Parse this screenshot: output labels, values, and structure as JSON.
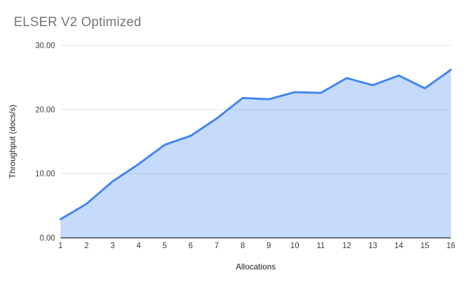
{
  "chart_data": {
    "type": "area",
    "title": "ELSER V2 Optimized",
    "xlabel": "Allocations",
    "ylabel": "Throughput (docs/s)",
    "x": [
      1,
      2,
      3,
      4,
      5,
      6,
      7,
      8,
      9,
      10,
      11,
      12,
      13,
      14,
      15,
      16
    ],
    "x_tick_labels": [
      "1",
      "2",
      "3",
      "4",
      "5",
      "6",
      "7",
      "8",
      "9",
      "10",
      "11",
      "12",
      "13",
      "14",
      "15",
      "16"
    ],
    "values": [
      2.9,
      5.3,
      8.8,
      11.5,
      14.5,
      15.9,
      18.6,
      21.8,
      21.6,
      22.7,
      22.6,
      24.9,
      23.8,
      25.3,
      23.3,
      26.2
    ],
    "ylim": [
      0,
      30
    ],
    "y_ticks": {
      "values": [
        0,
        10,
        20,
        30
      ],
      "labels": [
        "0.00",
        "10.00",
        "20.00",
        "30.00"
      ]
    },
    "grid": "horizontal",
    "legend": "none",
    "colors": {
      "line": "#4285f4",
      "fill": "rgba(66,133,244,0.30)",
      "grid": "#e3e3e3",
      "axis_line": "#212121",
      "tick_label": "#3c3c3c",
      "axis_title": "#212121",
      "title": "#757575",
      "background": "#ffffff"
    }
  }
}
